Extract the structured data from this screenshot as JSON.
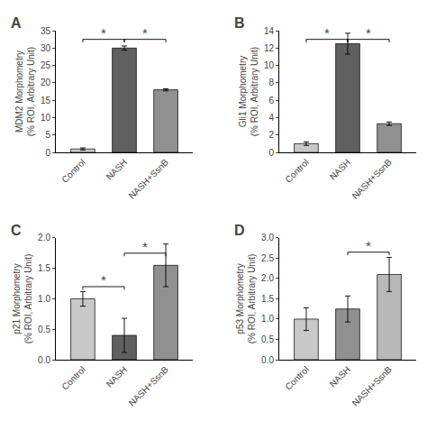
{
  "chart_data": [
    {
      "type": "bar",
      "title": "A",
      "ylabel": "MDM2 Morphometry\n(% ROI, Arbitrary Unit)",
      "categories": [
        "Control",
        "NASH",
        "NASH+SsnB"
      ],
      "values": [
        1.0,
        30.0,
        18.0
      ],
      "errors": [
        0.3,
        0.6,
        0.3
      ],
      "colors": [
        "#c8c8c8",
        "#606060",
        "#909090"
      ],
      "ylim": [
        0,
        35
      ],
      "yticks": [
        0,
        5,
        10,
        15,
        20,
        25,
        30,
        35
      ],
      "grid": false,
      "annotations": [
        {
          "x1": "Control",
          "x2": "NASH",
          "y": 32.5,
          "text": "*"
        },
        {
          "x1": "NASH",
          "x2": "NASH+SsnB",
          "y": 32.5,
          "text": "*"
        }
      ]
    },
    {
      "type": "bar",
      "title": "B",
      "ylabel": "Gli1 Morphometry\n(% ROI, Arbitrary Unit)",
      "categories": [
        "Control",
        "NASH",
        "NASH+SsnB"
      ],
      "values": [
        1.0,
        12.5,
        3.3
      ],
      "errors": [
        0.2,
        1.2,
        0.2
      ],
      "colors": [
        "#c8c8c8",
        "#606060",
        "#909090"
      ],
      "ylim": [
        0,
        14
      ],
      "yticks": [
        0,
        2,
        4,
        6,
        8,
        10,
        12,
        14
      ],
      "grid": false,
      "annotations": [
        {
          "x1": "Control",
          "x2": "NASH",
          "y": 13.0,
          "text": "*"
        },
        {
          "x1": "NASH",
          "x2": "NASH+SsnB",
          "y": 13.0,
          "text": "*"
        }
      ]
    },
    {
      "type": "bar",
      "title": "C",
      "ylabel": "p21 Morphometry\n(% ROI, Arbitrary Unit)",
      "categories": [
        "Control",
        "NASH",
        "NASH+SsnB"
      ],
      "values": [
        1.0,
        0.4,
        1.55
      ],
      "errors": [
        0.12,
        0.28,
        0.35
      ],
      "colors": [
        "#c8c8c8",
        "#606060",
        "#909090"
      ],
      "ylim": [
        0,
        2.0
      ],
      "yticks": [
        {
          "value": 0,
          "label": "0.0"
        },
        0.5,
        {
          "value": 1,
          "label": "1.0"
        },
        1.5,
        {
          "value": 2,
          "label": "2.0"
        }
      ],
      "grid": false,
      "annotations": [
        {
          "x1": "Control",
          "x2": "NASH",
          "y": 1.2,
          "text": "*"
        },
        {
          "x1": "NASH",
          "x2": "NASH+SsnB",
          "y": 1.75,
          "text": "*"
        }
      ]
    },
    {
      "type": "bar",
      "title": "D",
      "ylabel": "p53 Morphometry\n(% ROI, Arbitrary Unit)",
      "categories": [
        "Control",
        "NASH",
        "NASH+SsnB"
      ],
      "values": [
        1.0,
        1.25,
        2.1
      ],
      "errors": [
        0.28,
        0.32,
        0.42
      ],
      "colors": [
        "#c8c8c8",
        "#909090",
        "#b8b8b8"
      ],
      "ylim": [
        0,
        3.0
      ],
      "yticks": [
        {
          "value": 0,
          "label": "0.0"
        },
        0.5,
        {
          "value": 1,
          "label": "1.0"
        },
        1.5,
        {
          "value": 2,
          "label": "2.0"
        },
        2.5,
        {
          "value": 3,
          "label": "3.0"
        }
      ],
      "grid": false,
      "annotations": [
        {
          "x1": "NASH",
          "x2": "NASH+SsnB",
          "y": 2.65,
          "text": "*"
        }
      ]
    }
  ]
}
